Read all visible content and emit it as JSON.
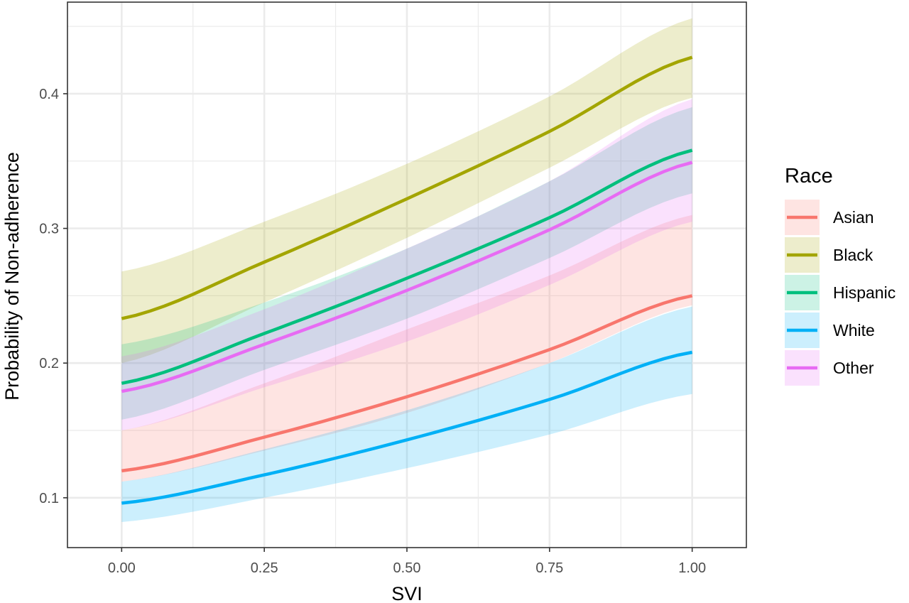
{
  "chart_data": {
    "type": "line",
    "title": "",
    "xlabel": "SVI",
    "ylabel": "Probability of Non-adherence",
    "xlim": [
      -0.095,
      1.095
    ],
    "ylim": [
      0.063,
      0.468
    ],
    "x_ticks": [
      0.0,
      0.25,
      0.5,
      0.75,
      1.0
    ],
    "x_tick_labels": [
      "0.00",
      "0.25",
      "0.50",
      "0.75",
      "1.00"
    ],
    "y_ticks": [
      0.1,
      0.2,
      0.3,
      0.4
    ],
    "y_tick_labels": [
      "0.1",
      "0.2",
      "0.3",
      "0.4"
    ],
    "grid": true,
    "confidence_bands": true,
    "legend": {
      "title": "Race",
      "placement": "right"
    },
    "x": [
      0.0,
      0.25,
      0.5,
      0.75,
      1.0
    ],
    "series": [
      {
        "name": "Asian",
        "color": "#F8766D",
        "values": [
          0.12,
          0.145,
          0.175,
          0.21,
          0.25
        ],
        "lower": [
          0.112,
          0.135,
          0.163,
          0.2,
          0.243
        ],
        "upper": [
          0.15,
          0.185,
          0.225,
          0.265,
          0.31
        ]
      },
      {
        "name": "Black",
        "color": "#A3A500",
        "values": [
          0.233,
          0.275,
          0.322,
          0.372,
          0.427
        ],
        "lower": [
          0.2,
          0.245,
          0.293,
          0.345,
          0.397
        ],
        "upper": [
          0.268,
          0.305,
          0.348,
          0.398,
          0.456
        ]
      },
      {
        "name": "Hispanic",
        "color": "#00BF7D",
        "values": [
          0.185,
          0.222,
          0.263,
          0.308,
          0.358
        ],
        "lower": [
          0.158,
          0.195,
          0.233,
          0.278,
          0.326
        ],
        "upper": [
          0.214,
          0.245,
          0.285,
          0.335,
          0.39
        ]
      },
      {
        "name": "White",
        "color": "#00B0F6",
        "values": [
          0.096,
          0.117,
          0.143,
          0.173,
          0.208
        ],
        "lower": [
          0.082,
          0.1,
          0.122,
          0.147,
          0.177
        ],
        "upper": [
          0.112,
          0.136,
          0.165,
          0.2,
          0.242
        ]
      },
      {
        "name": "Other",
        "color": "#E76BF3",
        "values": [
          0.179,
          0.214,
          0.254,
          0.299,
          0.349
        ],
        "lower": [
          0.15,
          0.182,
          0.216,
          0.258,
          0.305
        ],
        "upper": [
          0.205,
          0.24,
          0.285,
          0.335,
          0.396
        ]
      }
    ]
  }
}
